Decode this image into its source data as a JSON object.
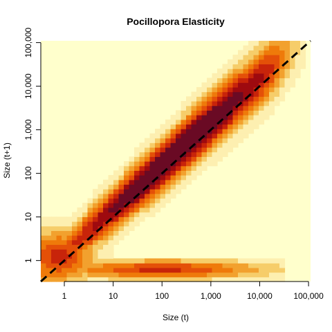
{
  "chart_data": {
    "type": "heatmap",
    "title": "Pocillopora Elasticity",
    "xlabel": "Size (t)",
    "ylabel": "Size (t+1)",
    "x_scale": "log10",
    "y_scale": "log10",
    "xlim": [
      0.33,
      110000
    ],
    "ylim": [
      0.33,
      110000
    ],
    "x_ticks": [
      {
        "value": 1,
        "label": "1"
      },
      {
        "value": 10,
        "label": "10"
      },
      {
        "value": 100,
        "label": "100"
      },
      {
        "value": 1000,
        "label": "1,000"
      },
      {
        "value": 10000,
        "label": "10,000"
      },
      {
        "value": 100000,
        "label": "100,000"
      }
    ],
    "y_ticks": [
      {
        "value": 1,
        "label": "1"
      },
      {
        "value": 10,
        "label": "10"
      },
      {
        "value": 100,
        "label": "100"
      },
      {
        "value": 1000,
        "label": "1,000"
      },
      {
        "value": 10000,
        "label": "10,000"
      },
      {
        "value": 100000,
        "label": "100,000"
      }
    ],
    "grid": false,
    "reference_line": {
      "style": "dashed",
      "color": "#000000",
      "from": [
        0.33,
        0.33
      ],
      "to": [
        110000,
        110000
      ]
    },
    "colormap": [
      "#FFFFCC",
      "#FDEFB0",
      "#F6CD6A",
      "#F2A12E",
      "#EF7A0A",
      "#E45008",
      "#C8240A",
      "#9E0A0F",
      "#6A0A24"
    ],
    "background_color": "#FFFFCC",
    "diagonal_band": {
      "x_range_log10": [
        -0.5,
        4.9
      ],
      "peak_log10": 2.3,
      "offset_log10": 0.18
    },
    "recruit_band": {
      "y_log10_center": -0.2,
      "x_range_log10": [
        0.1,
        4.5
      ],
      "peak_x_log10": 2.0
    }
  }
}
